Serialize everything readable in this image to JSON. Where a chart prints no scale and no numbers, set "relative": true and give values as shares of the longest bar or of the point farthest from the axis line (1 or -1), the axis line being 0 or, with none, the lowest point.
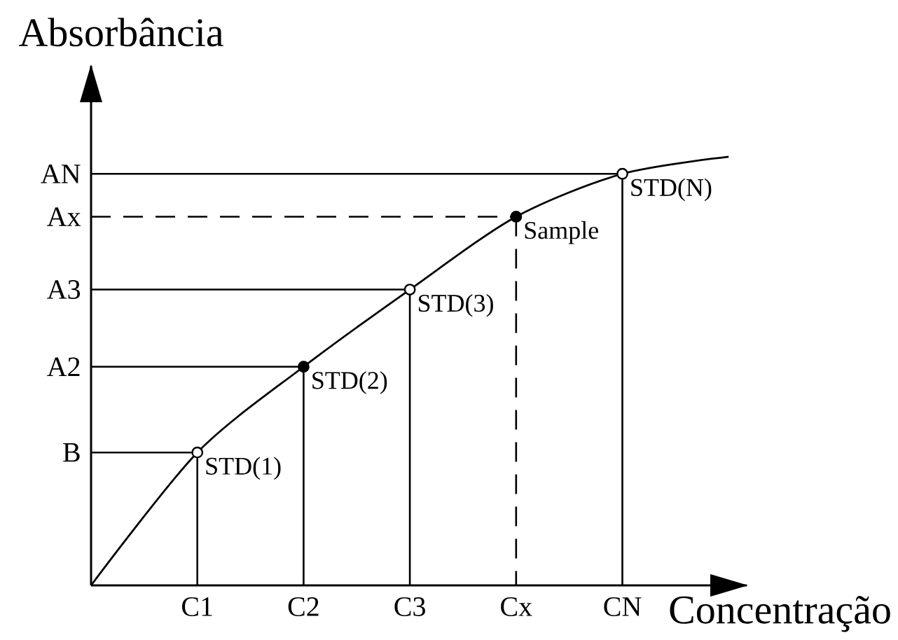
{
  "chart_data": {
    "type": "line",
    "relative": true,
    "xlabel": "Concentração",
    "ylabel": "Absorbância",
    "categories": [
      null,
      "C1",
      "C2",
      "C3",
      "Cx",
      "CN",
      null
    ],
    "series": [
      {
        "type": "line",
        "color": "#000000",
        "values": [
          0,
          0.31,
          0.51,
          0.69,
          0.86,
          0.96,
          1
        ]
      },
      {
        "type": "scatter",
        "marker": "circle",
        "color": "#000000",
        "colors": [
          null,
          "#ffffff",
          "#000000",
          "#ffffff",
          "#000000",
          "#ffffff",
          null
        ],
        "values": [
          null,
          0.31,
          0.51,
          0.69,
          0.86,
          0.96,
          null
        ]
      }
    ],
    "ref_lines": [
      {
        "axis": "y",
        "value": 0.31,
        "label": "B"
      },
      {
        "axis": "y",
        "value": 0.51,
        "label": "A2"
      },
      {
        "axis": "y",
        "value": 0.69,
        "label": "A3"
      },
      {
        "axis": "y",
        "value": 0.86,
        "label": "Ax",
        "line_style": "dashed"
      },
      {
        "axis": "y",
        "value": 0.96,
        "label": "AN"
      }
    ],
    "annotations": [
      {
        "text": "STD(1)",
        "x": "C1",
        "y": 0.31
      },
      {
        "text": "STD(2)",
        "x": "C2",
        "y": 0.51
      },
      {
        "text": "STD(3)",
        "x": "C3",
        "y": 0.69
      },
      {
        "text": "Sample",
        "x": "Cx",
        "y": 0.86
      },
      {
        "text": "STD(N)",
        "x": "CN",
        "y": 0.96
      }
    ]
  }
}
